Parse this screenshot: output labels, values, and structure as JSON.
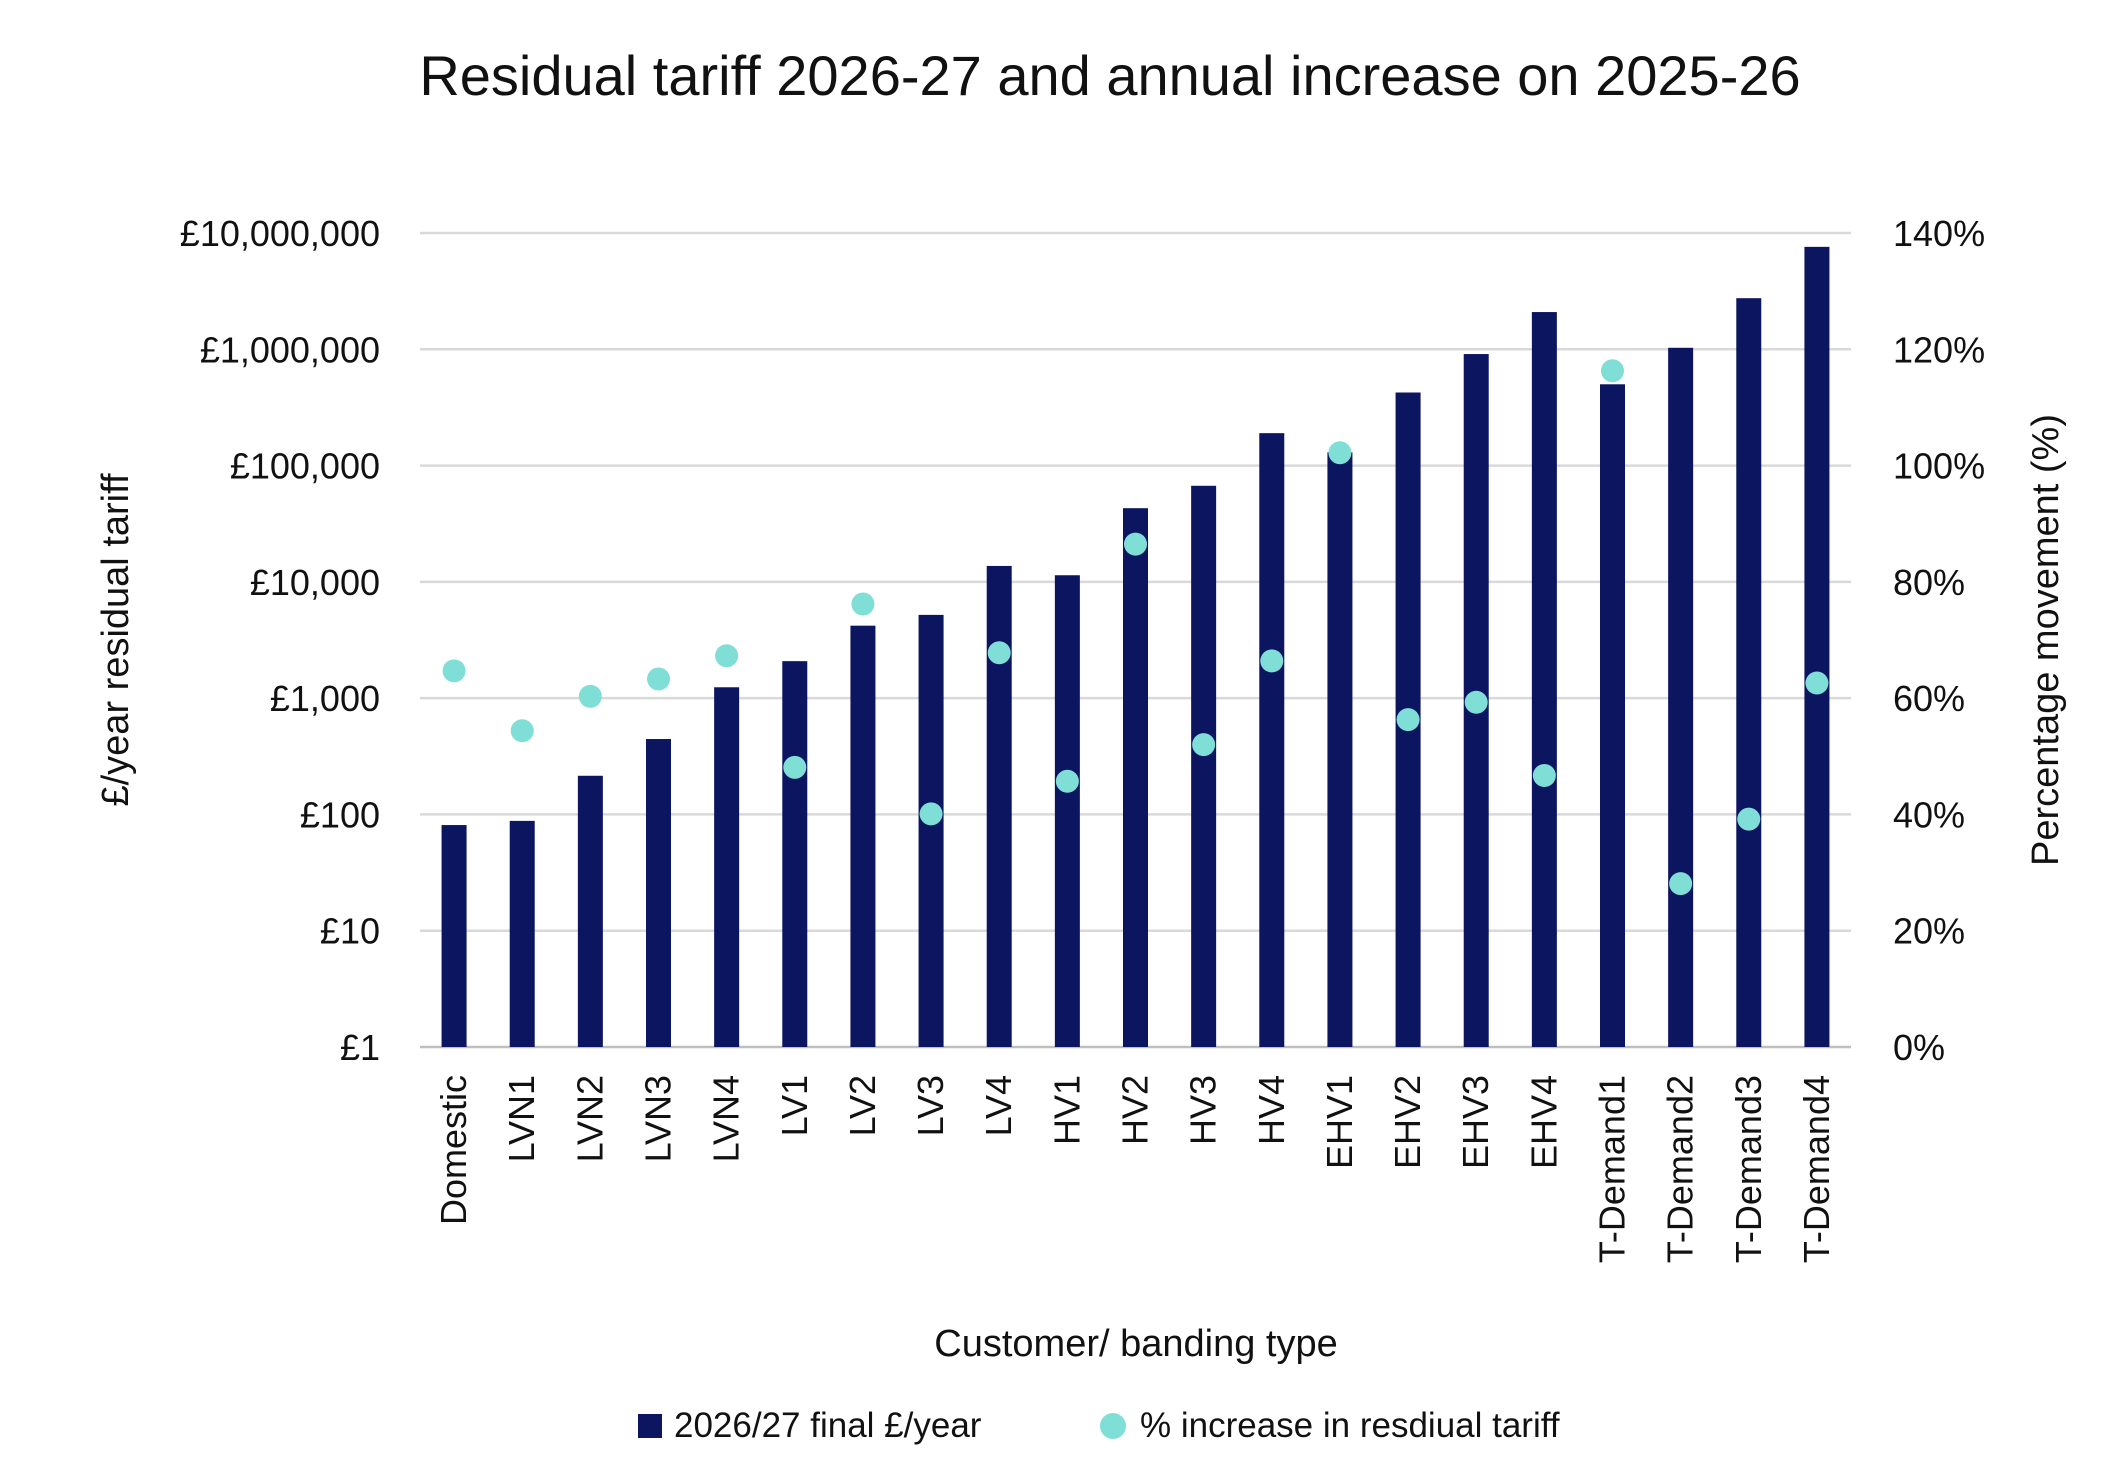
{
  "chart_data": {
    "type": "bar",
    "title": "Residual tariff 2026-27 and annual increase on 2025-26",
    "xlabel": "Customer/ banding type",
    "ylabel": "£/year residual tariff",
    "y2label": "Percentage movement (%)",
    "yscale": "log",
    "ylim": [
      1,
      10000000
    ],
    "y2lim": [
      0,
      140
    ],
    "grid": true,
    "legend_position": "bottom",
    "yticks": [
      "£1",
      "£10",
      "£100",
      "£1,000",
      "£10,000",
      "£100,000",
      "£1,000,000",
      "£10,000,000"
    ],
    "y2ticks": [
      "0%",
      "20%",
      "40%",
      "60%",
      "80%",
      "100%",
      "120%",
      "140%"
    ],
    "categories": [
      "Domestic",
      "LVN1",
      "LVN2",
      "LVN3",
      "LVN4",
      "LV1",
      "LV2",
      "LV3",
      "LV4",
      "HV1",
      "HV2",
      "HV3",
      "HV4",
      "EHV1",
      "EHV2",
      "EHV3",
      "EHV4",
      "T-Demand1",
      "T-Demand2",
      "T-Demand3",
      "T-Demand4"
    ],
    "series": [
      {
        "name": "2026/27 final £/year",
        "type": "bar",
        "axis": "left",
        "color": "#0c1560",
        "values": [
          81,
          88,
          215,
          445,
          1240,
          2080,
          4200,
          5200,
          13700,
          11400,
          43000,
          67000,
          190000,
          130000,
          425000,
          910000,
          2090000,
          500000,
          1030000,
          2750000,
          7600000
        ]
      },
      {
        "name": "% increase in resdiual tariff",
        "type": "scatter",
        "axis": "right",
        "color": "#7fded6",
        "values": [
          64.7,
          54.4,
          60.3,
          63.3,
          67.3,
          48.1,
          76.2,
          40.1,
          67.8,
          45.7,
          86.5,
          52.0,
          66.4,
          102.2,
          56.3,
          59.3,
          46.7,
          116.3,
          28.1,
          39.2,
          62.6
        ]
      }
    ]
  }
}
